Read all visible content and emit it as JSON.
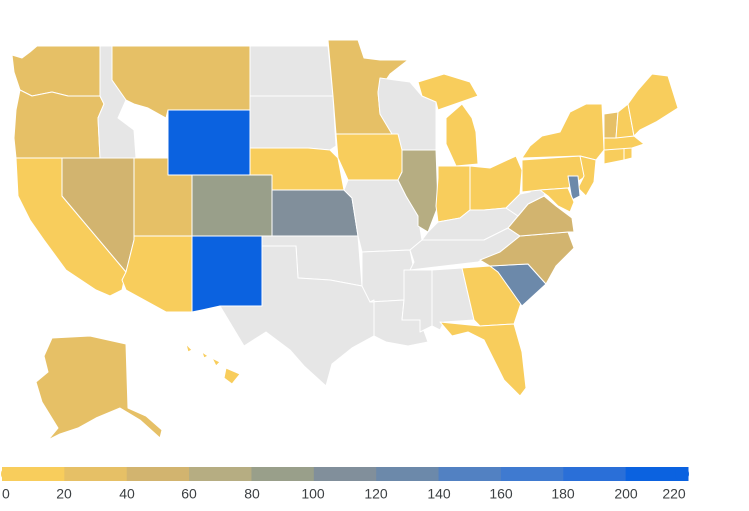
{
  "map": {
    "region": "United States",
    "no_data_color": "#e6e6e6",
    "states": [
      {
        "id": "WA",
        "value": 30
      },
      {
        "id": "OR",
        "value": 30
      },
      {
        "id": "CA",
        "value": 10
      },
      {
        "id": "NV",
        "value": 50
      },
      {
        "id": "ID",
        "value": null
      },
      {
        "id": "MT",
        "value": 30
      },
      {
        "id": "WY",
        "value": 215
      },
      {
        "id": "UT",
        "value": 30
      },
      {
        "id": "CO",
        "value": 90
      },
      {
        "id": "AZ",
        "value": 10
      },
      {
        "id": "NM",
        "value": 215
      },
      {
        "id": "ND",
        "value": null
      },
      {
        "id": "SD",
        "value": null
      },
      {
        "id": "NE",
        "value": 10
      },
      {
        "id": "KS",
        "value": 110
      },
      {
        "id": "OK",
        "value": null
      },
      {
        "id": "TX",
        "value": null
      },
      {
        "id": "MN",
        "value": 30
      },
      {
        "id": "IA",
        "value": 10
      },
      {
        "id": "MO",
        "value": null
      },
      {
        "id": "AR",
        "value": null
      },
      {
        "id": "LA",
        "value": null
      },
      {
        "id": "WI",
        "value": null
      },
      {
        "id": "IL",
        "value": 70
      },
      {
        "id": "MI",
        "value": 10
      },
      {
        "id": "IN",
        "value": 10
      },
      {
        "id": "OH",
        "value": 10
      },
      {
        "id": "KY",
        "value": null
      },
      {
        "id": "TN",
        "value": null
      },
      {
        "id": "MS",
        "value": null
      },
      {
        "id": "AL",
        "value": null
      },
      {
        "id": "GA",
        "value": 10
      },
      {
        "id": "FL",
        "value": 10
      },
      {
        "id": "SC",
        "value": 130
      },
      {
        "id": "NC",
        "value": 50
      },
      {
        "id": "VA",
        "value": 50
      },
      {
        "id": "WV",
        "value": null
      },
      {
        "id": "PA",
        "value": 10
      },
      {
        "id": "NY",
        "value": 10
      },
      {
        "id": "NJ",
        "value": 10
      },
      {
        "id": "DE",
        "value": 130
      },
      {
        "id": "MD",
        "value": 10
      },
      {
        "id": "CT",
        "value": 10
      },
      {
        "id": "RI",
        "value": 10
      },
      {
        "id": "MA",
        "value": 10
      },
      {
        "id": "VT",
        "value": 30
      },
      {
        "id": "NH",
        "value": 10
      },
      {
        "id": "ME",
        "value": 10
      },
      {
        "id": "AK",
        "value": 30
      },
      {
        "id": "HI",
        "value": 10
      }
    ]
  },
  "legend": {
    "min": 0,
    "max": 220,
    "segment_colors": [
      "#f8cd5c",
      "#e6c066",
      "#d2b46f",
      "#b6ad82",
      "#999f8a",
      "#818f9b",
      "#6c89aa",
      "#5281c2",
      "#3f7ad0",
      "#2a6fd8",
      "#0b62e0"
    ],
    "ticks": [
      "0",
      "20",
      "40",
      "60",
      "80",
      "100",
      "120",
      "140",
      "160",
      "180",
      "200",
      "220"
    ]
  }
}
